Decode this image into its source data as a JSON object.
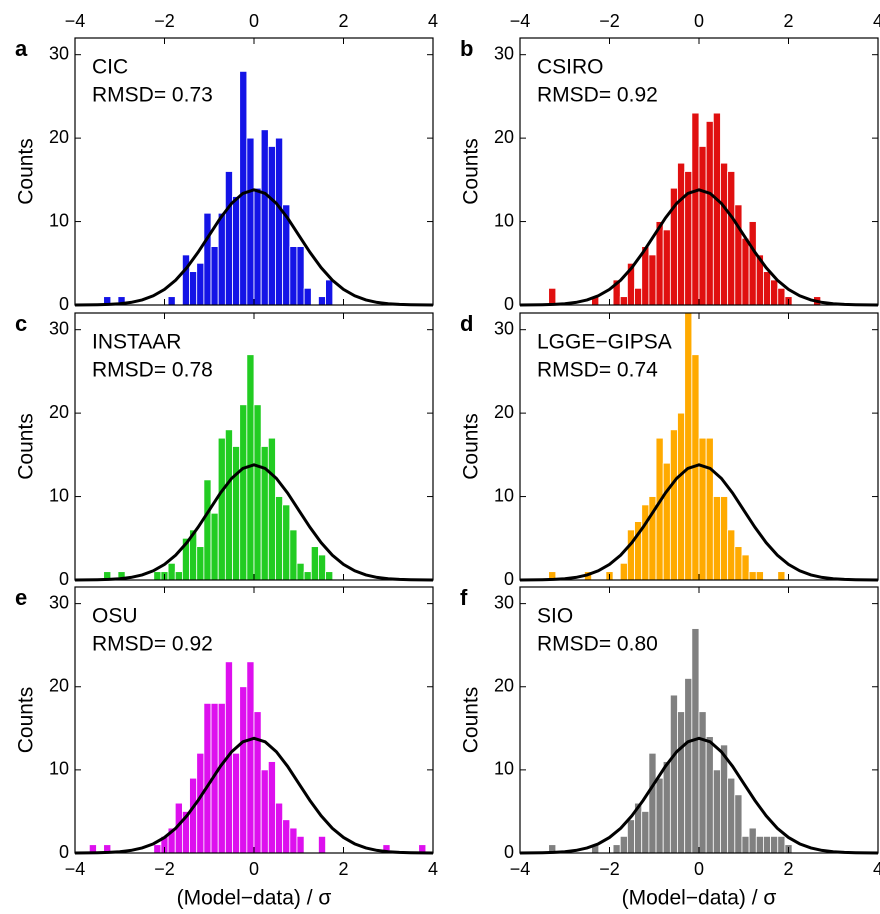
{
  "chart_data": [
    {
      "type": "histogram",
      "panel": "a",
      "title": "CIC",
      "annotation": "RMSD= 0.73",
      "ylabel": "Counts",
      "color": "#1414e6",
      "tick_label_side": "top",
      "bins": [
        -4,
        -3.84,
        -3.68,
        -3.52,
        -3.36,
        -3.2,
        -3.04,
        -2.88,
        -2.72,
        -2.56,
        -2.4,
        -2.24,
        -2.08,
        -1.92,
        -1.76,
        -1.6,
        -1.44,
        -1.28,
        -1.12,
        -0.96,
        -0.8,
        -0.64,
        -0.48,
        -0.32,
        -0.16,
        0,
        0.16,
        0.32,
        0.48,
        0.64,
        0.8,
        0.96,
        1.12,
        1.28,
        1.44,
        1.6,
        1.76,
        1.92,
        2.08,
        2.24,
        2.4,
        2.56,
        2.72,
        2.88,
        3.04,
        3.2,
        3.36,
        3.52,
        3.68,
        3.84,
        4
      ],
      "values": [
        0,
        0,
        0,
        0,
        1,
        0,
        1,
        0,
        0,
        0,
        0,
        0,
        0,
        1,
        0,
        6,
        4,
        5,
        11,
        7,
        11,
        16,
        13,
        28,
        20,
        14,
        21,
        19,
        20,
        12,
        7,
        7,
        2,
        0,
        1,
        3,
        0,
        0,
        0,
        0,
        0,
        0,
        0,
        0,
        0,
        0,
        0,
        0,
        0,
        0
      ],
      "fit": {
        "color": "#000000",
        "x": [
          -4,
          -3.75,
          -3.5,
          -3.25,
          -3,
          -2.75,
          -2.5,
          -2.25,
          -2,
          -1.75,
          -1.5,
          -1.25,
          -1,
          -0.75,
          -0.5,
          -0.25,
          0,
          0.25,
          0.5,
          0.75,
          1,
          1.25,
          1.5,
          1.75,
          2,
          2.25,
          2.5,
          2.75,
          3,
          3.25,
          3.5,
          3.75,
          4
        ],
        "values": [
          0,
          0.01,
          0.03,
          0.07,
          0.15,
          0.31,
          0.61,
          1.1,
          1.87,
          2.98,
          4.48,
          6.32,
          8.37,
          10.43,
          12.18,
          13.37,
          13.8,
          13.37,
          12.18,
          10.43,
          8.37,
          6.32,
          4.48,
          2.98,
          1.87,
          1.1,
          0.61,
          0.31,
          0.15,
          0.07,
          0.03,
          0.01,
          0
        ]
      },
      "xlim": [
        -4,
        4
      ],
      "ylim": [
        0,
        32
      ],
      "xticks": [
        {
          "value": -4,
          "label": "−4"
        },
        {
          "value": -2,
          "label": "−2"
        },
        0,
        2,
        4
      ],
      "yticks": [
        0,
        10,
        20,
        30
      ]
    },
    {
      "type": "histogram",
      "panel": "b",
      "title": "CSIRO",
      "annotation": "RMSD= 0.92",
      "ylabel": "Counts",
      "color": "#e01010",
      "tick_label_side": "top",
      "bins": [
        -4,
        -3.84,
        -3.68,
        -3.52,
        -3.36,
        -3.2,
        -3.04,
        -2.88,
        -2.72,
        -2.56,
        -2.4,
        -2.24,
        -2.08,
        -1.92,
        -1.76,
        -1.6,
        -1.44,
        -1.28,
        -1.12,
        -0.96,
        -0.8,
        -0.64,
        -0.48,
        -0.32,
        -0.16,
        0,
        0.16,
        0.32,
        0.48,
        0.64,
        0.8,
        0.96,
        1.12,
        1.28,
        1.44,
        1.6,
        1.76,
        1.92,
        2.08,
        2.24,
        2.4,
        2.56,
        2.72,
        2.88,
        3.04,
        3.2,
        3.36,
        3.52,
        3.68,
        3.84,
        4
      ],
      "values": [
        0,
        0,
        0,
        0,
        2,
        0,
        0,
        0,
        0,
        0,
        1,
        0,
        0,
        3,
        1,
        5,
        2,
        7,
        6,
        10,
        9,
        14,
        17,
        16,
        23,
        19,
        22,
        23,
        17,
        16,
        12,
        8,
        10,
        6,
        4,
        3,
        2,
        1,
        0,
        0,
        0,
        1,
        0,
        0,
        0,
        0,
        0,
        0,
        0,
        0
      ],
      "fit": {
        "color": "#000000",
        "x": [
          -4,
          -3.75,
          -3.5,
          -3.25,
          -3,
          -2.75,
          -2.5,
          -2.25,
          -2,
          -1.75,
          -1.5,
          -1.25,
          -1,
          -0.75,
          -0.5,
          -0.25,
          0,
          0.25,
          0.5,
          0.75,
          1,
          1.25,
          1.5,
          1.75,
          2,
          2.25,
          2.5,
          2.75,
          3,
          3.25,
          3.5,
          3.75,
          4
        ],
        "values": [
          0,
          0.01,
          0.03,
          0.07,
          0.15,
          0.31,
          0.61,
          1.1,
          1.87,
          2.98,
          4.48,
          6.32,
          8.37,
          10.43,
          12.18,
          13.37,
          13.8,
          13.37,
          12.18,
          10.43,
          8.37,
          6.32,
          4.48,
          2.98,
          1.87,
          1.1,
          0.61,
          0.31,
          0.15,
          0.07,
          0.03,
          0.01,
          0
        ]
      },
      "xlim": [
        -4,
        4
      ],
      "ylim": [
        0,
        32
      ],
      "xticks": [
        {
          "value": -4,
          "label": "−4"
        },
        {
          "value": -2,
          "label": "−2"
        },
        0,
        2,
        4
      ],
      "yticks": [
        0,
        10,
        20,
        30
      ]
    },
    {
      "type": "histogram",
      "panel": "c",
      "title": "INSTAAR",
      "annotation": "RMSD= 0.78",
      "ylabel": "Counts",
      "color": "#22cc22",
      "tick_label_side": "none",
      "bins": [
        -4,
        -3.84,
        -3.68,
        -3.52,
        -3.36,
        -3.2,
        -3.04,
        -2.88,
        -2.72,
        -2.56,
        -2.4,
        -2.24,
        -2.08,
        -1.92,
        -1.76,
        -1.6,
        -1.44,
        -1.28,
        -1.12,
        -0.96,
        -0.8,
        -0.64,
        -0.48,
        -0.32,
        -0.16,
        0,
        0.16,
        0.32,
        0.48,
        0.64,
        0.8,
        0.96,
        1.12,
        1.28,
        1.44,
        1.6,
        1.76,
        1.92,
        2.08,
        2.24,
        2.4,
        2.56,
        2.72,
        2.88,
        3.04,
        3.2,
        3.36,
        3.52,
        3.68,
        3.84,
        4
      ],
      "values": [
        0,
        0,
        0,
        0,
        1,
        0,
        1,
        0,
        0,
        0,
        0,
        1,
        1,
        2,
        1,
        5,
        6,
        4,
        12,
        8,
        17,
        18,
        16,
        21,
        27,
        21,
        16,
        17,
        10,
        9,
        6,
        2,
        1,
        4,
        3,
        1,
        0,
        0,
        0,
        0,
        0,
        0,
        0,
        0,
        0,
        0,
        0,
        0,
        0,
        0
      ],
      "fit": {
        "color": "#000000",
        "x": [
          -4,
          -3.75,
          -3.5,
          -3.25,
          -3,
          -2.75,
          -2.5,
          -2.25,
          -2,
          -1.75,
          -1.5,
          -1.25,
          -1,
          -0.75,
          -0.5,
          -0.25,
          0,
          0.25,
          0.5,
          0.75,
          1,
          1.25,
          1.5,
          1.75,
          2,
          2.25,
          2.5,
          2.75,
          3,
          3.25,
          3.5,
          3.75,
          4
        ],
        "values": [
          0,
          0.01,
          0.03,
          0.07,
          0.15,
          0.31,
          0.61,
          1.1,
          1.87,
          2.98,
          4.48,
          6.32,
          8.37,
          10.43,
          12.18,
          13.37,
          13.8,
          13.37,
          12.18,
          10.43,
          8.37,
          6.32,
          4.48,
          2.98,
          1.87,
          1.1,
          0.61,
          0.31,
          0.15,
          0.07,
          0.03,
          0.01,
          0
        ]
      },
      "xlim": [
        -4,
        4
      ],
      "ylim": [
        0,
        32
      ],
      "xticks": [
        {
          "value": -4,
          "label": "−4"
        },
        {
          "value": -2,
          "label": "−2"
        },
        0,
        2,
        4
      ],
      "yticks": [
        0,
        10,
        20,
        30
      ]
    },
    {
      "type": "histogram",
      "panel": "d",
      "title": "LGGE−GIPSA",
      "annotation": "RMSD= 0.74",
      "ylabel": "Counts",
      "color": "#ffaa00",
      "tick_label_side": "none",
      "bins": [
        -4,
        -3.84,
        -3.68,
        -3.52,
        -3.36,
        -3.2,
        -3.04,
        -2.88,
        -2.72,
        -2.56,
        -2.4,
        -2.24,
        -2.08,
        -1.92,
        -1.76,
        -1.6,
        -1.44,
        -1.28,
        -1.12,
        -0.96,
        -0.8,
        -0.64,
        -0.48,
        -0.32,
        -0.16,
        0,
        0.16,
        0.32,
        0.48,
        0.64,
        0.8,
        0.96,
        1.12,
        1.28,
        1.44,
        1.6,
        1.76,
        1.92,
        2.08,
        2.24,
        2.4,
        2.56,
        2.72,
        2.88,
        3.04,
        3.2,
        3.36,
        3.52,
        3.68,
        3.84,
        4
      ],
      "values": [
        0,
        0,
        0,
        0,
        1,
        0,
        0,
        0,
        0,
        1,
        0,
        0,
        1,
        0,
        2,
        6,
        7,
        9,
        10,
        17,
        14,
        18,
        20,
        32,
        27,
        17,
        17,
        10,
        10,
        6,
        4,
        3,
        1,
        1,
        0,
        0,
        1,
        0,
        0,
        0,
        0,
        0,
        0,
        0,
        0,
        0,
        0,
        0,
        0,
        0
      ],
      "fit": {
        "color": "#000000",
        "x": [
          -4,
          -3.75,
          -3.5,
          -3.25,
          -3,
          -2.75,
          -2.5,
          -2.25,
          -2,
          -1.75,
          -1.5,
          -1.25,
          -1,
          -0.75,
          -0.5,
          -0.25,
          0,
          0.25,
          0.5,
          0.75,
          1,
          1.25,
          1.5,
          1.75,
          2,
          2.25,
          2.5,
          2.75,
          3,
          3.25,
          3.5,
          3.75,
          4
        ],
        "values": [
          0,
          0.01,
          0.03,
          0.07,
          0.15,
          0.31,
          0.61,
          1.1,
          1.87,
          2.98,
          4.48,
          6.32,
          8.37,
          10.43,
          12.18,
          13.37,
          13.8,
          13.37,
          12.18,
          10.43,
          8.37,
          6.32,
          4.48,
          2.98,
          1.87,
          1.1,
          0.61,
          0.31,
          0.15,
          0.07,
          0.03,
          0.01,
          0
        ]
      },
      "xlim": [
        -4,
        4
      ],
      "ylim": [
        0,
        32
      ],
      "xticks": [
        {
          "value": -4,
          "label": "−4"
        },
        {
          "value": -2,
          "label": "−2"
        },
        0,
        2,
        4
      ],
      "yticks": [
        0,
        10,
        20,
        30
      ]
    },
    {
      "type": "histogram",
      "panel": "e",
      "title": "OSU",
      "annotation": "RMSD= 0.92",
      "ylabel": "Counts",
      "xlabel": "(Model−data) / σ",
      "color": "#dd10ee",
      "tick_label_side": "bottom",
      "bins": [
        -4,
        -3.84,
        -3.68,
        -3.52,
        -3.36,
        -3.2,
        -3.04,
        -2.88,
        -2.72,
        -2.56,
        -2.4,
        -2.24,
        -2.08,
        -1.92,
        -1.76,
        -1.6,
        -1.44,
        -1.28,
        -1.12,
        -0.96,
        -0.8,
        -0.64,
        -0.48,
        -0.32,
        -0.16,
        0,
        0.16,
        0.32,
        0.48,
        0.64,
        0.8,
        0.96,
        1.12,
        1.28,
        1.44,
        1.6,
        1.76,
        1.92,
        2.08,
        2.24,
        2.4,
        2.56,
        2.72,
        2.88,
        3.04,
        3.2,
        3.36,
        3.52,
        3.68,
        3.84,
        4
      ],
      "values": [
        0,
        0,
        1,
        0,
        1,
        0,
        0,
        0,
        0,
        0,
        0,
        1,
        2,
        3,
        6,
        5,
        9,
        12,
        18,
        18,
        18,
        23,
        12,
        20,
        23,
        17,
        10,
        11,
        6,
        4,
        3,
        2,
        0,
        0,
        2,
        0,
        0,
        0,
        0,
        0,
        0,
        0,
        0,
        1,
        0,
        0,
        0,
        0,
        1,
        0
      ],
      "fit": {
        "color": "#000000",
        "x": [
          -4,
          -3.75,
          -3.5,
          -3.25,
          -3,
          -2.75,
          -2.5,
          -2.25,
          -2,
          -1.75,
          -1.5,
          -1.25,
          -1,
          -0.75,
          -0.5,
          -0.25,
          0,
          0.25,
          0.5,
          0.75,
          1,
          1.25,
          1.5,
          1.75,
          2,
          2.25,
          2.5,
          2.75,
          3,
          3.25,
          3.5,
          3.75,
          4
        ],
        "values": [
          0,
          0.01,
          0.03,
          0.07,
          0.15,
          0.31,
          0.61,
          1.1,
          1.87,
          2.98,
          4.48,
          6.32,
          8.37,
          10.43,
          12.18,
          13.37,
          13.8,
          13.37,
          12.18,
          10.43,
          8.37,
          6.32,
          4.48,
          2.98,
          1.87,
          1.1,
          0.61,
          0.31,
          0.15,
          0.07,
          0.03,
          0.01,
          0
        ]
      },
      "xlim": [
        -4,
        4
      ],
      "ylim": [
        0,
        32
      ],
      "xticks": [
        {
          "value": -4,
          "label": "−4"
        },
        {
          "value": -2,
          "label": "−2"
        },
        0,
        2,
        4
      ],
      "yticks": [
        0,
        10,
        20,
        30
      ]
    },
    {
      "type": "histogram",
      "panel": "f",
      "title": "SIO",
      "annotation": "RMSD= 0.80",
      "ylabel": "Counts",
      "xlabel": "(Model−data) / σ",
      "color": "#808080",
      "tick_label_side": "bottom",
      "bins": [
        -4,
        -3.84,
        -3.68,
        -3.52,
        -3.36,
        -3.2,
        -3.04,
        -2.88,
        -2.72,
        -2.56,
        -2.4,
        -2.24,
        -2.08,
        -1.92,
        -1.76,
        -1.6,
        -1.44,
        -1.28,
        -1.12,
        -0.96,
        -0.8,
        -0.64,
        -0.48,
        -0.32,
        -0.16,
        0,
        0.16,
        0.32,
        0.48,
        0.64,
        0.8,
        0.96,
        1.12,
        1.28,
        1.44,
        1.6,
        1.76,
        1.92,
        2.08,
        2.24,
        2.4,
        2.56,
        2.72,
        2.88,
        3.04,
        3.2,
        3.36,
        3.52,
        3.68,
        3.84,
        4
      ],
      "values": [
        0,
        0,
        0,
        0,
        1,
        0,
        0,
        0,
        0,
        0,
        1,
        0,
        0,
        1,
        2,
        4,
        6,
        5,
        12,
        9,
        11,
        19,
        17,
        21,
        27,
        17,
        14,
        10,
        13,
        9,
        7,
        2,
        3,
        2,
        2,
        2,
        2,
        1,
        0,
        0,
        0,
        0,
        0,
        0,
        0,
        0,
        0,
        0,
        0,
        0
      ],
      "fit": {
        "color": "#000000",
        "x": [
          -4,
          -3.75,
          -3.5,
          -3.25,
          -3,
          -2.75,
          -2.5,
          -2.25,
          -2,
          -1.75,
          -1.5,
          -1.25,
          -1,
          -0.75,
          -0.5,
          -0.25,
          0,
          0.25,
          0.5,
          0.75,
          1,
          1.25,
          1.5,
          1.75,
          2,
          2.25,
          2.5,
          2.75,
          3,
          3.25,
          3.5,
          3.75,
          4
        ],
        "values": [
          0,
          0.01,
          0.03,
          0.07,
          0.15,
          0.31,
          0.61,
          1.1,
          1.87,
          2.98,
          4.48,
          6.32,
          8.37,
          10.43,
          12.18,
          13.37,
          13.8,
          13.37,
          12.18,
          10.43,
          8.37,
          6.32,
          4.48,
          2.98,
          1.87,
          1.1,
          0.61,
          0.31,
          0.15,
          0.07,
          0.03,
          0.01,
          0
        ]
      },
      "xlim": [
        -4,
        4
      ],
      "ylim": [
        0,
        32
      ],
      "xticks": [
        {
          "value": -4,
          "label": "−4"
        },
        {
          "value": -2,
          "label": "−2"
        },
        0,
        2,
        4
      ],
      "yticks": [
        0,
        10,
        20,
        30
      ]
    }
  ]
}
